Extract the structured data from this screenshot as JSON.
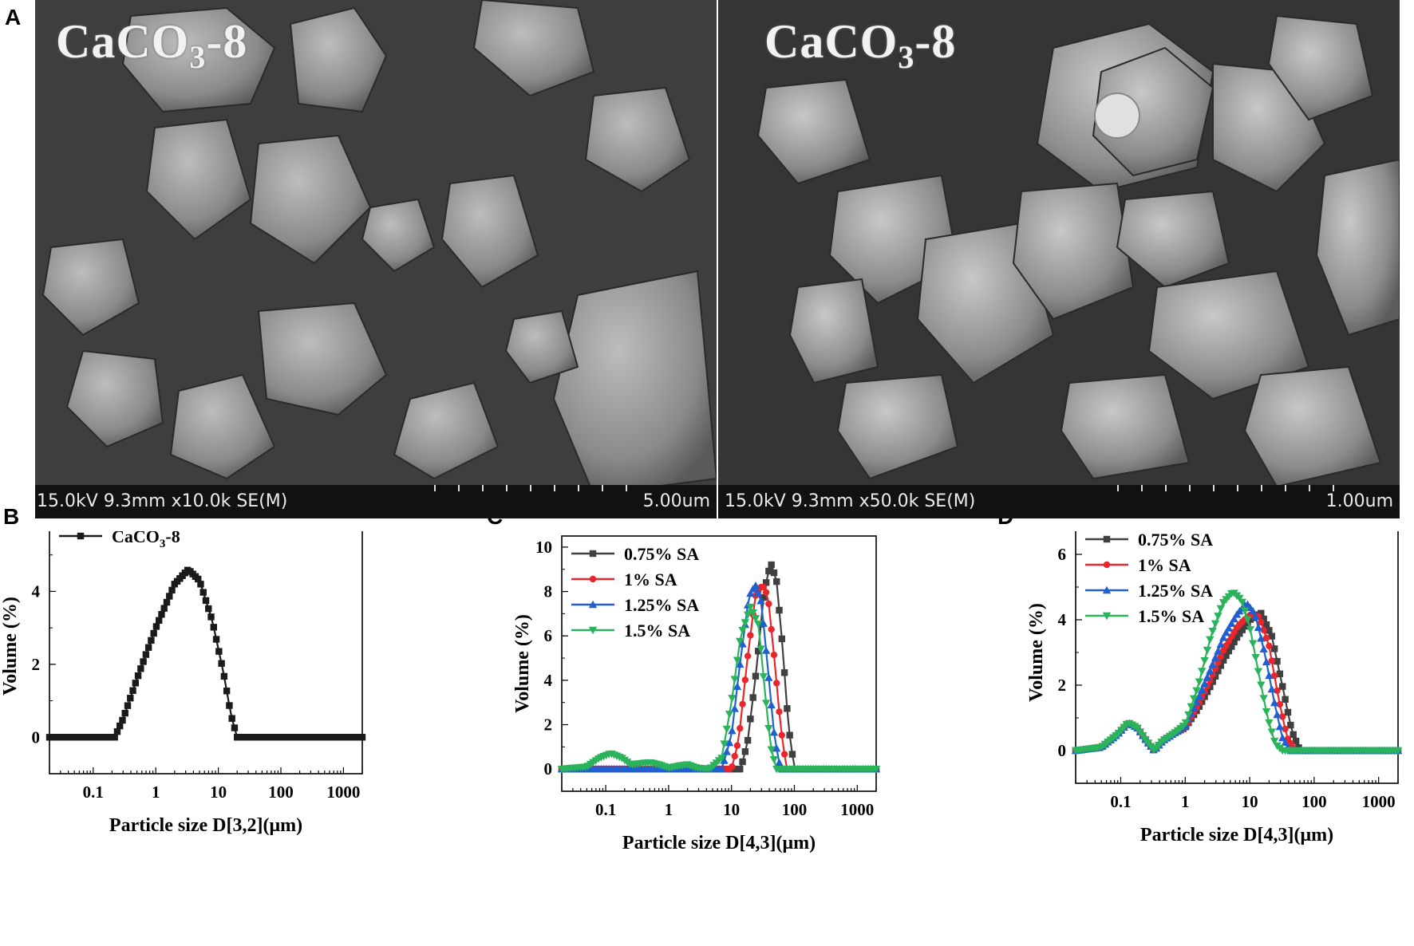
{
  "panels": {
    "A": "A",
    "B": "B",
    "C": "C",
    "D": "D"
  },
  "sem": [
    {
      "label_main": "CaCO",
      "label_sub": "3",
      "label_suffix": "-8",
      "meta": "15.0kV 9.3mm x10.0k SE(M)",
      "scale": "5.00um"
    },
    {
      "label_main": "CaCO",
      "label_sub": "3",
      "label_suffix": "-8",
      "meta": "15.0kV 9.3mm x50.0k SE(M)",
      "scale": "1.00um"
    }
  ],
  "colors": {
    "black": "#1a1a1a",
    "grey": "#404040",
    "red": "#e8262b",
    "blue": "#1f5fd1",
    "green": "#2bb35c"
  },
  "chart_data": [
    {
      "panel": "B",
      "type": "line",
      "x_scale": "log",
      "xlim": [
        0.02,
        2000
      ],
      "ylim": [
        -1,
        6
      ],
      "x_ticks": [
        "0.1",
        "1",
        "10",
        "100",
        "1000"
      ],
      "y_ticks": [
        "0",
        "2",
        "4",
        "6"
      ],
      "xlabel": "Particle size D[3,2](μm)",
      "ylabel": "Volume (%)",
      "legend": "top-left",
      "series": [
        {
          "name": "CaCO3-8",
          "color": "#1a1a1a",
          "marker": "square",
          "x": [
            0.02,
            0.22,
            0.3,
            0.5,
            1.0,
            2.0,
            3.3,
            5.0,
            8.0,
            12.0,
            16.0,
            20.0,
            2000
          ],
          "y": [
            0,
            0,
            0.5,
            1.6,
            3.0,
            4.2,
            4.6,
            4.3,
            3.2,
            1.8,
            0.6,
            0,
            0
          ]
        }
      ]
    },
    {
      "panel": "C",
      "type": "line",
      "x_scale": "log",
      "xlim": [
        0.02,
        2000
      ],
      "ylim": [
        -1,
        10.5
      ],
      "x_ticks": [
        "0.1",
        "1",
        "10",
        "100",
        "1000"
      ],
      "y_ticks": [
        "0",
        "2",
        "4",
        "6",
        "8",
        "10"
      ],
      "xlabel": "Particle size D[4,3](μm)",
      "ylabel": "Volume (%)",
      "legend": "top-left",
      "series": [
        {
          "name": "0.75% SA",
          "color": "#404040",
          "marker": "square",
          "x": [
            0.02,
            14,
            18,
            25,
            33,
            42,
            52,
            65,
            80,
            100,
            2000
          ],
          "y": [
            0,
            0,
            1.2,
            4.5,
            8.0,
            9.3,
            8.5,
            5.5,
            2.0,
            0,
            0
          ]
        },
        {
          "name": "1% SA",
          "color": "#e8262b",
          "marker": "circle",
          "x": [
            0.02,
            10,
            13,
            18,
            24,
            31,
            38,
            48,
            60,
            75,
            2000
          ],
          "y": [
            0,
            0,
            1.3,
            5.0,
            7.8,
            8.3,
            7.8,
            5.0,
            2.0,
            0,
            0
          ]
        },
        {
          "name": "1.25% SA",
          "color": "#1f5fd1",
          "marker": "triangle-up",
          "x": [
            0.02,
            7,
            10,
            14,
            19,
            24,
            30,
            38,
            48,
            60,
            2000
          ],
          "y": [
            0,
            0,
            1.5,
            5.0,
            7.8,
            8.3,
            7.5,
            4.5,
            1.5,
            0,
            0
          ]
        },
        {
          "name": "1.5% SA",
          "color": "#2bb35c",
          "marker": "triangle-down",
          "x": [
            0.02,
            0.05,
            0.08,
            0.12,
            0.18,
            0.25,
            0.35,
            0.5,
            0.7,
            1.0,
            1.5,
            2.0,
            2.8,
            4.5,
            7,
            10,
            14,
            20,
            27,
            34,
            42,
            52,
            2000
          ],
          "y": [
            0,
            0.1,
            0.5,
            0.7,
            0.5,
            0.2,
            0.25,
            0.3,
            0.2,
            0.05,
            0.15,
            0.2,
            0.05,
            0,
            0.5,
            3.0,
            6.0,
            7.3,
            6.5,
            3.5,
            1.0,
            0,
            0
          ]
        }
      ]
    },
    {
      "panel": "D",
      "type": "line",
      "x_scale": "log",
      "xlim": [
        0.02,
        2000
      ],
      "ylim": [
        -1,
        7
      ],
      "x_ticks": [
        "0.1",
        "1",
        "10",
        "100",
        "1000"
      ],
      "y_ticks": [
        "0",
        "2",
        "4",
        "6"
      ],
      "xlabel": "Particle size D[4,3](μm)",
      "ylabel": "Volume (%)",
      "legend": "top-left",
      "series": [
        {
          "name": "0.75% SA",
          "color": "#404040",
          "marker": "square",
          "x": [
            0.02,
            0.05,
            0.09,
            0.13,
            0.18,
            0.25,
            0.33,
            0.45,
            0.7,
            1.0,
            1.6,
            2.5,
            4.0,
            6.5,
            10,
            15,
            22,
            32,
            45,
            60,
            2000
          ],
          "y": [
            0,
            0.1,
            0.5,
            0.85,
            0.7,
            0.3,
            0.0,
            0.3,
            0.55,
            0.7,
            1.3,
            2.0,
            2.8,
            3.5,
            4.0,
            4.2,
            3.5,
            2.0,
            0.6,
            0,
            0
          ]
        },
        {
          "name": "1% SA",
          "color": "#e8262b",
          "marker": "circle",
          "x": [
            0.02,
            0.05,
            0.09,
            0.13,
            0.18,
            0.25,
            0.33,
            0.45,
            0.7,
            1.0,
            1.6,
            2.5,
            4.0,
            6.5,
            10,
            14,
            20,
            28,
            38,
            50,
            2000
          ],
          "y": [
            0,
            0.1,
            0.5,
            0.85,
            0.7,
            0.3,
            0.0,
            0.3,
            0.55,
            0.7,
            1.4,
            2.2,
            3.1,
            3.8,
            4.15,
            4.1,
            3.2,
            1.6,
            0.4,
            0,
            0
          ]
        },
        {
          "name": "1.25% SA",
          "color": "#1f5fd1",
          "marker": "triangle-up",
          "x": [
            0.02,
            0.05,
            0.09,
            0.13,
            0.18,
            0.25,
            0.33,
            0.45,
            0.7,
            1.0,
            1.6,
            2.5,
            4.0,
            6.5,
            9,
            12,
            17,
            24,
            32,
            42,
            2000
          ],
          "y": [
            0,
            0.1,
            0.5,
            0.85,
            0.7,
            0.3,
            0.0,
            0.3,
            0.55,
            0.75,
            1.6,
            2.5,
            3.5,
            4.2,
            4.5,
            4.2,
            3.0,
            1.5,
            0.4,
            0,
            0
          ]
        },
        {
          "name": "1.5% SA",
          "color": "#2bb35c",
          "marker": "triangle-down",
          "x": [
            0.02,
            0.05,
            0.09,
            0.13,
            0.18,
            0.25,
            0.33,
            0.45,
            0.7,
            1.0,
            1.6,
            2.5,
            3.8,
            5.5,
            7.5,
            10,
            14,
            19,
            25,
            32,
            2000
          ],
          "y": [
            0,
            0.1,
            0.5,
            0.85,
            0.7,
            0.3,
            0.0,
            0.3,
            0.55,
            0.8,
            2.0,
            3.5,
            4.5,
            4.85,
            4.6,
            3.8,
            2.3,
            1.0,
            0.2,
            0,
            0
          ]
        }
      ]
    }
  ]
}
